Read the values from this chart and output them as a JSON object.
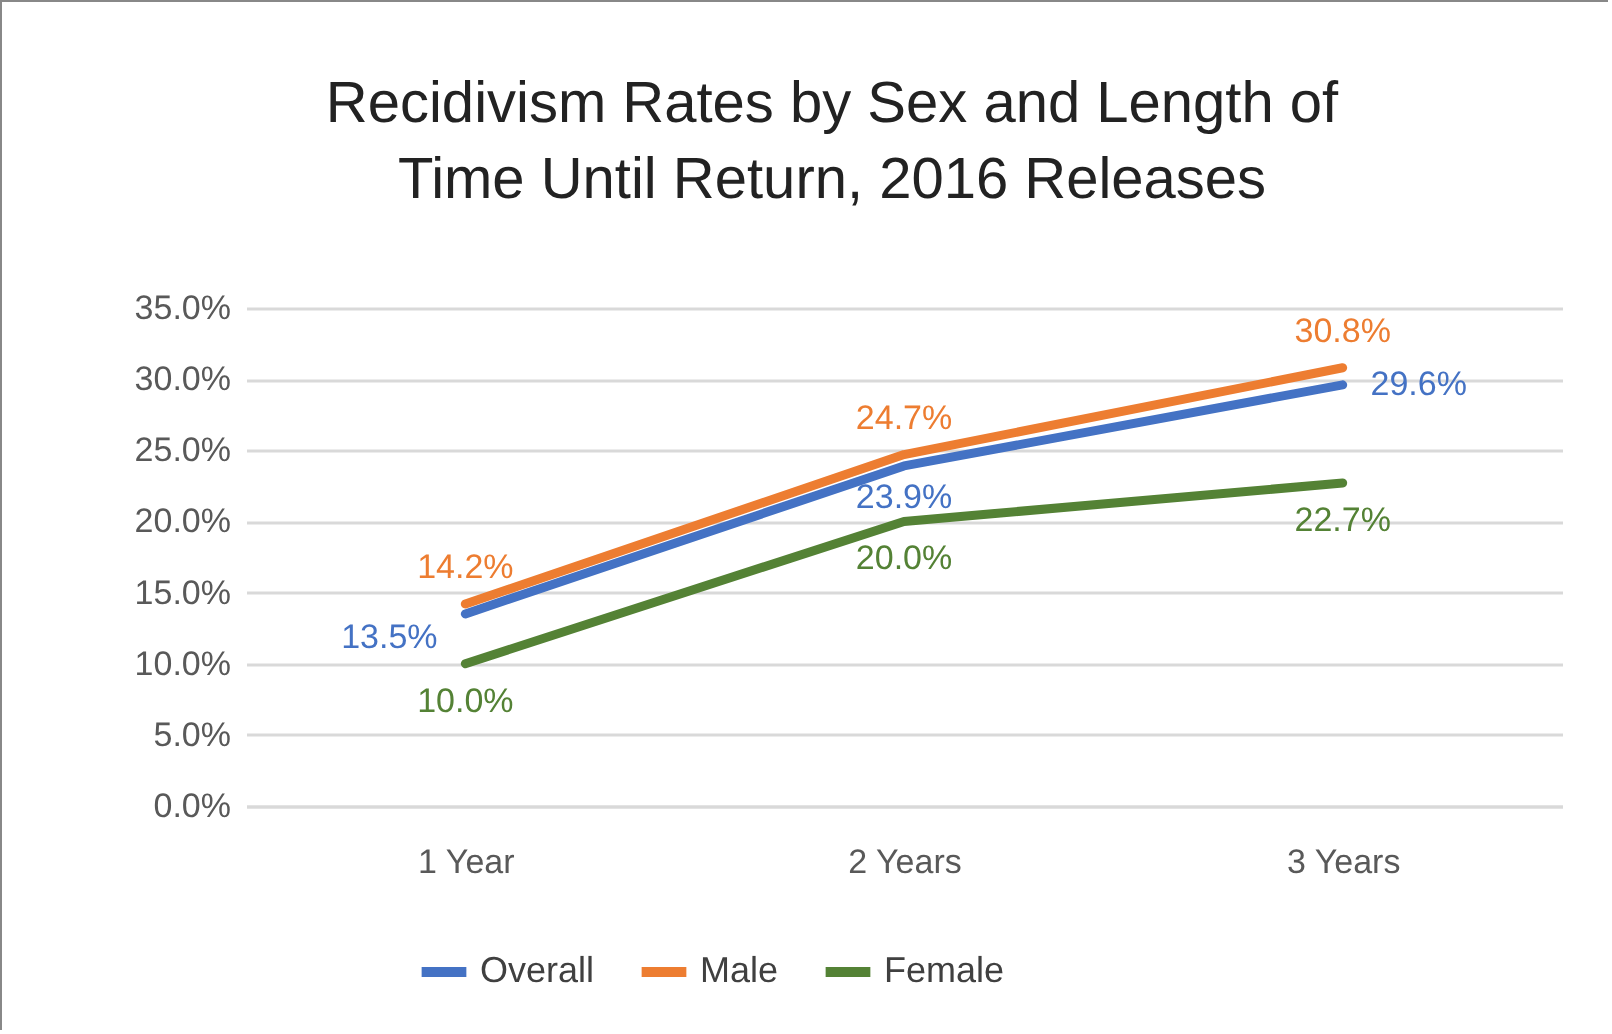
{
  "chart_data": {
    "type": "line",
    "title": "Recidivism Rates by Sex and Length of Time Until Return, 2016 Releases",
    "categories": [
      "1 Year",
      "2 Years",
      "3 Years"
    ],
    "series": [
      {
        "name": "Overall",
        "color": "#4472c4",
        "values": [
          13.5,
          23.9,
          29.6
        ],
        "value_labels": [
          "13.5%",
          "23.9%",
          "29.6%"
        ]
      },
      {
        "name": "Male",
        "color": "#ed7d31",
        "values": [
          14.2,
          24.7,
          30.8
        ],
        "value_labels": [
          "14.2%",
          "24.7%",
          "30.8%"
        ]
      },
      {
        "name": "Female",
        "color": "#548235",
        "values": [
          10.0,
          20.0,
          22.7
        ],
        "value_labels": [
          "10.0%",
          "20.0%",
          "22.7%"
        ]
      }
    ],
    "ylim": [
      0,
      35
    ],
    "yticks": [
      {
        "value": 0,
        "label": "0.0%"
      },
      {
        "value": 5,
        "label": "5.0%"
      },
      {
        "value": 10,
        "label": "10.0%"
      },
      {
        "value": 15,
        "label": "15.0%"
      },
      {
        "value": 20,
        "label": "20.0%"
      },
      {
        "value": 25,
        "label": "25.0%"
      },
      {
        "value": 30,
        "label": "30.0%"
      },
      {
        "value": 35,
        "label": "35.0%"
      }
    ],
    "grid": "y",
    "legend": "bottom",
    "marker": "none",
    "line_style": "solid"
  }
}
